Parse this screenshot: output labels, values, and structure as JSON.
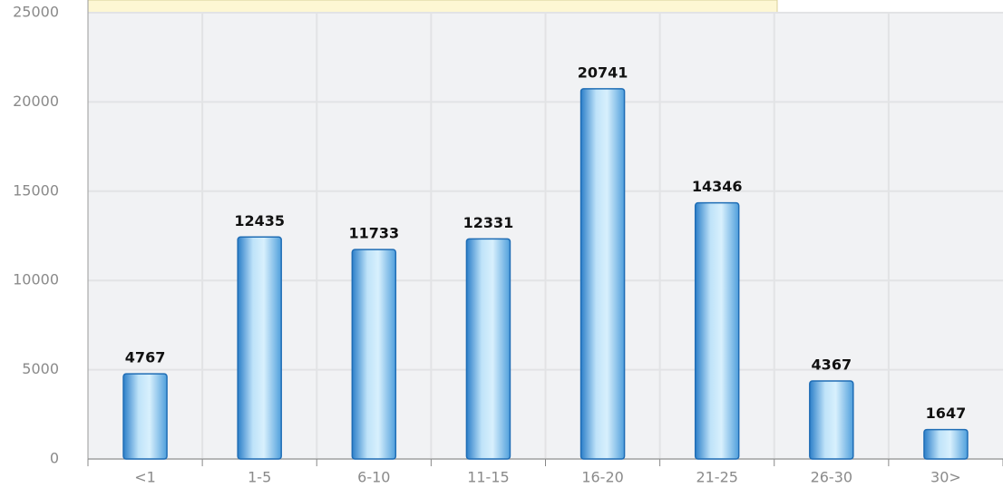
{
  "chart_data": {
    "type": "bar",
    "categories": [
      "<1",
      "1-5",
      "6-10",
      "11-15",
      "16-20",
      "21-25",
      "26-30",
      "30>"
    ],
    "values": [
      4767,
      12435,
      11733,
      12331,
      20741,
      14346,
      4367,
      1647
    ],
    "color": "#3a8fd6",
    "ylim": [
      0,
      25000
    ],
    "yticks": [
      0,
      5000,
      10000,
      15000,
      20000,
      25000
    ],
    "grid": true
  }
}
